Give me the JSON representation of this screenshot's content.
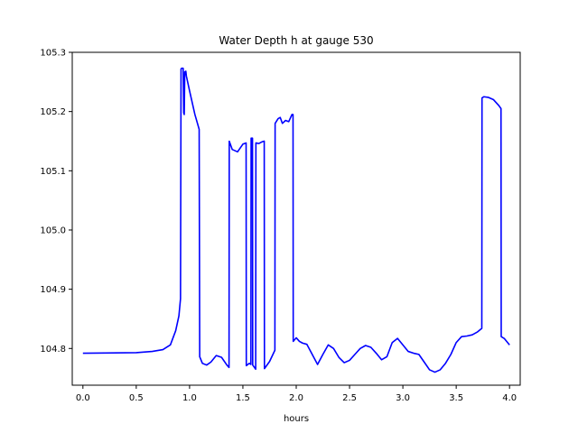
{
  "chart_data": {
    "type": "line",
    "title": "Water Depth h at gauge 530",
    "xlabel": "hours",
    "ylabel": "",
    "xlim": [
      -0.1,
      4.1
    ],
    "ylim": [
      104.738,
      105.3
    ],
    "xticks": [
      {
        "value": 0.0,
        "label": "0.0"
      },
      {
        "value": 0.5,
        "label": "0.5"
      },
      {
        "value": 1.0,
        "label": "1.0"
      },
      {
        "value": 1.5,
        "label": "1.5"
      },
      {
        "value": 2.0,
        "label": "2.0"
      },
      {
        "value": 2.5,
        "label": "2.5"
      },
      {
        "value": 3.0,
        "label": "3.0"
      },
      {
        "value": 3.5,
        "label": "3.5"
      },
      {
        "value": 4.0,
        "label": "4.0"
      }
    ],
    "yticks": [
      {
        "value": 104.8,
        "label": "104.8"
      },
      {
        "value": 104.9,
        "label": "104.9"
      },
      {
        "value": 105.0,
        "label": "105.0"
      },
      {
        "value": 105.1,
        "label": "105.1"
      },
      {
        "value": 105.2,
        "label": "105.2"
      },
      {
        "value": 105.3,
        "label": "105.3"
      }
    ],
    "grid": false,
    "series": [
      {
        "color": "#0000ff",
        "x": [
          0.0,
          0.5,
          0.65,
          0.75,
          0.82,
          0.87,
          0.9,
          0.915,
          0.92,
          0.925,
          0.94,
          0.945,
          0.95,
          0.955,
          0.965,
          0.97,
          1.0,
          1.05,
          1.09,
          1.095,
          1.12,
          1.16,
          1.2,
          1.25,
          1.3,
          1.35,
          1.37,
          1.372,
          1.4,
          1.45,
          1.5,
          1.53,
          1.532,
          1.56,
          1.575,
          1.577,
          1.59,
          1.592,
          1.62,
          1.622,
          1.65,
          1.68,
          1.7,
          1.702,
          1.75,
          1.8,
          1.802,
          1.83,
          1.85,
          1.87,
          1.9,
          1.93,
          1.96,
          1.97,
          1.972,
          2.0,
          2.03,
          2.06,
          2.1,
          2.15,
          2.2,
          2.25,
          2.3,
          2.35,
          2.4,
          2.45,
          2.5,
          2.55,
          2.6,
          2.65,
          2.7,
          2.75,
          2.8,
          2.85,
          2.9,
          2.95,
          3.0,
          3.05,
          3.1,
          3.15,
          3.2,
          3.25,
          3.3,
          3.35,
          3.4,
          3.45,
          3.5,
          3.55,
          3.6,
          3.65,
          3.7,
          3.74,
          3.742,
          3.76,
          3.8,
          3.85,
          3.9,
          3.92,
          3.922,
          3.95,
          4.0
        ],
        "y": [
          104.792,
          104.793,
          104.795,
          104.798,
          104.806,
          104.83,
          104.855,
          104.884,
          105.272,
          105.273,
          105.273,
          105.198,
          105.195,
          105.267,
          105.268,
          105.26,
          105.235,
          105.195,
          105.17,
          104.786,
          104.775,
          104.772,
          104.777,
          104.788,
          104.785,
          104.772,
          104.768,
          105.15,
          105.136,
          105.132,
          105.145,
          105.147,
          104.771,
          104.775,
          104.773,
          105.155,
          105.155,
          104.772,
          104.765,
          105.147,
          105.146,
          105.149,
          105.15,
          104.766,
          104.778,
          104.797,
          105.18,
          105.188,
          105.19,
          105.18,
          105.185,
          105.183,
          105.195,
          105.195,
          104.812,
          104.818,
          104.812,
          104.809,
          104.807,
          104.79,
          104.773,
          104.79,
          104.806,
          104.8,
          104.785,
          104.776,
          104.78,
          104.79,
          104.8,
          104.805,
          104.802,
          104.792,
          104.781,
          104.786,
          104.81,
          104.817,
          104.806,
          104.795,
          104.792,
          104.79,
          104.777,
          104.764,
          104.76,
          104.764,
          104.775,
          104.79,
          104.81,
          104.82,
          104.821,
          104.823,
          104.828,
          104.834,
          105.223,
          105.225,
          105.224,
          105.22,
          105.21,
          105.205,
          104.82,
          104.817,
          104.806
        ]
      }
    ]
  }
}
